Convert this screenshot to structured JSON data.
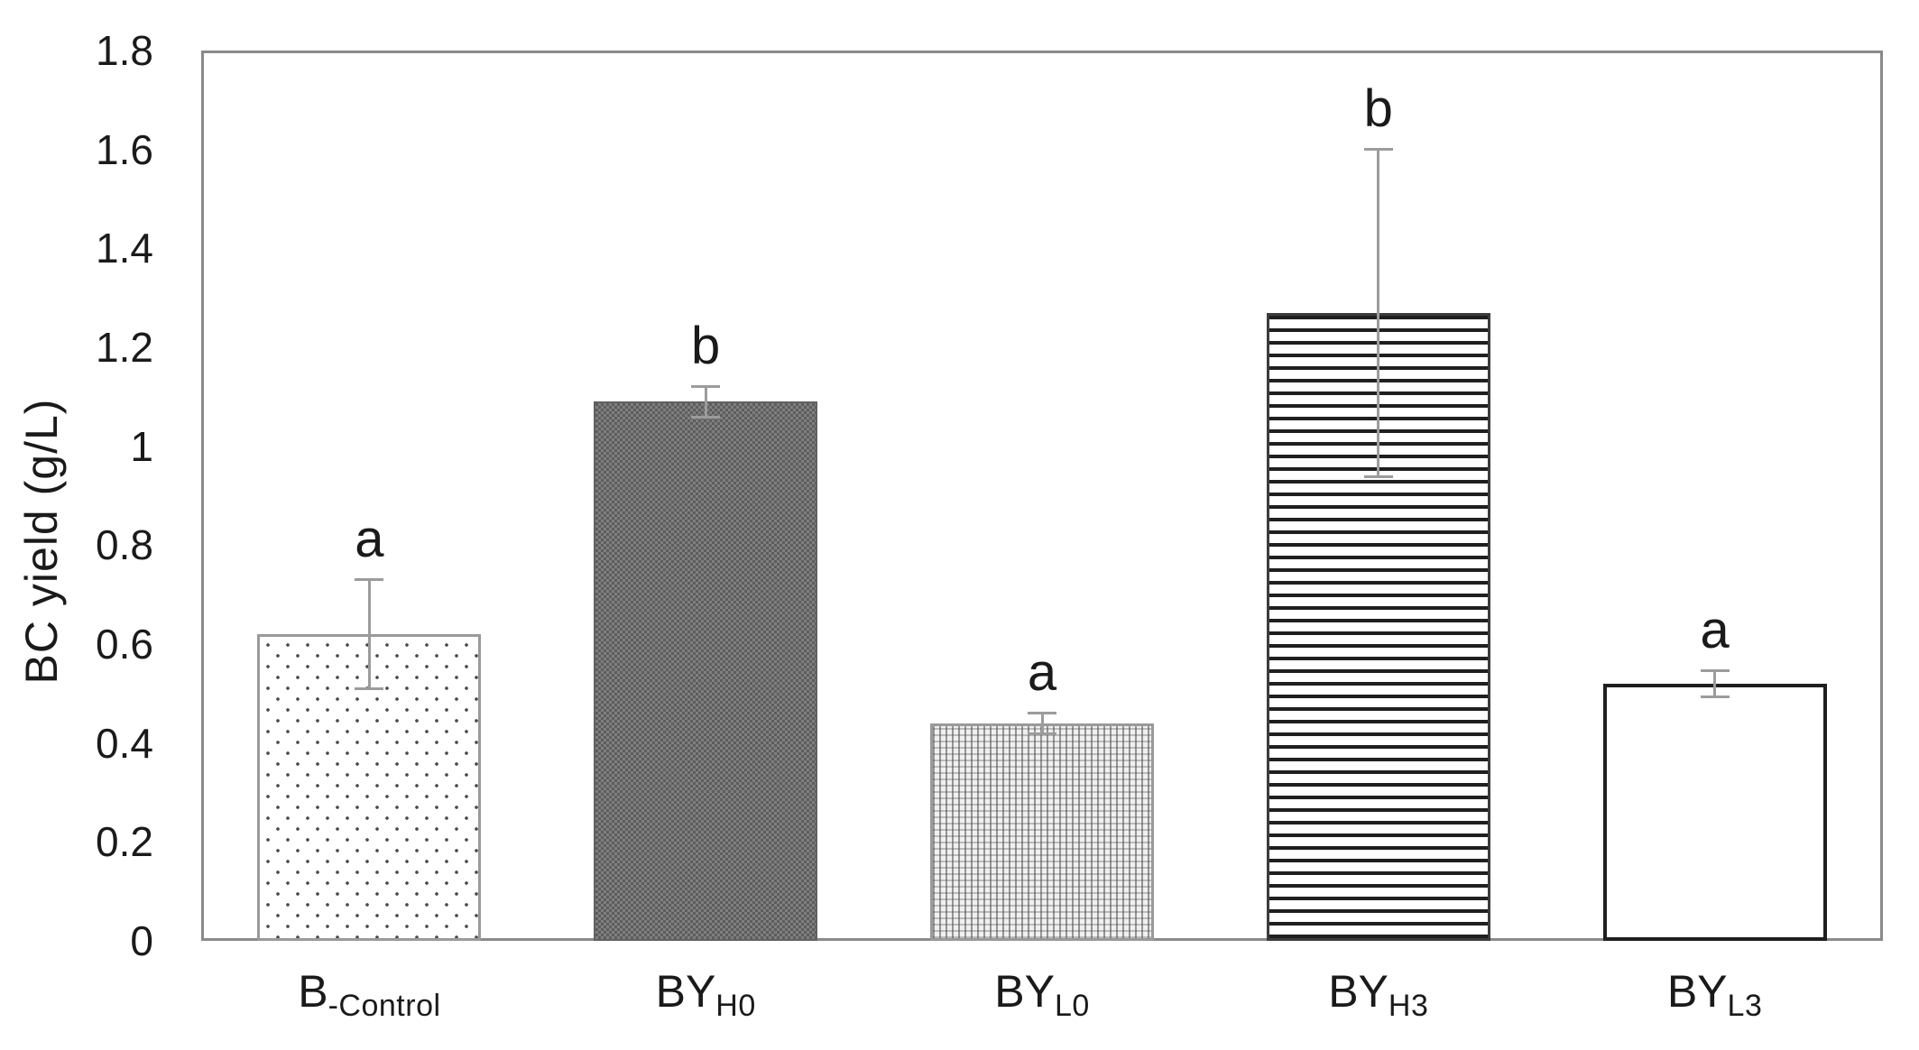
{
  "chart_data": {
    "type": "bar",
    "title": "",
    "xlabel": "",
    "ylabel": "BC yield (g/L)",
    "ylim": [
      0,
      1.8
    ],
    "grid": false,
    "legend": null,
    "yticks": [
      "0",
      "0.2",
      "0.4",
      "0.6",
      "0.8",
      "1",
      "1.2",
      "1.4",
      "1.6",
      "1.8"
    ],
    "categories": [
      "B-Control",
      "BYH0",
      "BYL0",
      "BYH3",
      "BYL3"
    ],
    "bars": [
      {
        "label_main": "B",
        "label_sub": "-Control",
        "value": 0.62,
        "error": 0.11,
        "letter": "a",
        "pattern": "sparse-dots"
      },
      {
        "label_main": "BY",
        "label_sub": "H0",
        "value": 1.09,
        "error": 0.03,
        "letter": "b",
        "pattern": "dark-checker"
      },
      {
        "label_main": "BY",
        "label_sub": "L0",
        "value": 0.44,
        "error": 0.02,
        "letter": "a",
        "pattern": "light-mesh"
      },
      {
        "label_main": "BY",
        "label_sub": "H3",
        "value": 1.27,
        "error": 0.33,
        "letter": "b",
        "pattern": "horizontal-lines"
      },
      {
        "label_main": "BY",
        "label_sub": "L3",
        "value": 0.52,
        "error": 0.025,
        "letter": "a",
        "pattern": "plain-white"
      }
    ]
  },
  "colors": {
    "text": "#1a1a1a",
    "axis_frame": "#8a8a8a",
    "error_bar": "#9c9c9c"
  }
}
